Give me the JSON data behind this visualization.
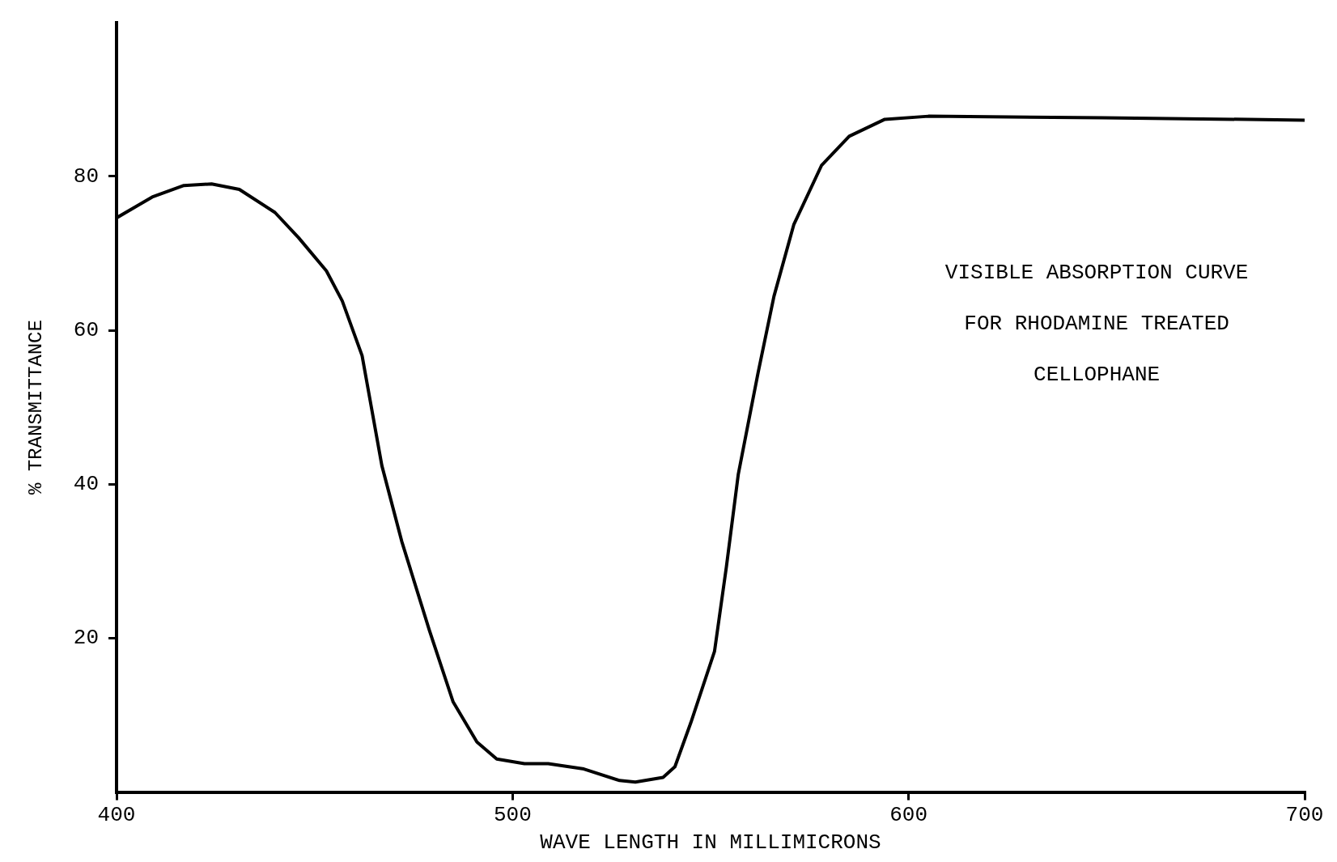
{
  "chart_data": {
    "type": "line",
    "xlabel": "WAVE LENGTH IN MILLIMICRONS",
    "ylabel": "% TRANSMITTANCE",
    "annotations": [
      "VISIBLE ABSORPTION CURVE",
      "FOR RHODAMINE TREATED",
      "CELLOPHANE"
    ],
    "xlim": [
      400,
      700
    ],
    "xticks": [
      400,
      500,
      600,
      700
    ],
    "ylim": [
      0,
      100
    ],
    "yticks": [
      20,
      40,
      60,
      80
    ],
    "grid": false,
    "legend": false,
    "marker": "none",
    "line_style": "solid",
    "series": [
      {
        "color": "#000000",
        "x": [
          400,
          409,
          417,
          424,
          431,
          440,
          446,
          453,
          457,
          462,
          467,
          472,
          479,
          485,
          491,
          496,
          503,
          509,
          518,
          527,
          531,
          538,
          541,
          545,
          551,
          554,
          557,
          562,
          566,
          571,
          578,
          585,
          594,
          605,
          649,
          700
        ],
        "values": [
          74.6,
          77.3,
          78.8,
          79,
          78.3,
          75.3,
          72,
          67.7,
          63.8,
          56.7,
          42.4,
          32.6,
          21,
          11.7,
          6.5,
          4.3,
          3.7,
          3.7,
          3,
          1.5,
          1.3,
          1.9,
          3.3,
          9,
          18.3,
          29.3,
          41.3,
          54.5,
          64.4,
          73.7,
          81.4,
          85.2,
          87.4,
          87.8,
          87.6,
          87.3
        ]
      }
    ]
  }
}
